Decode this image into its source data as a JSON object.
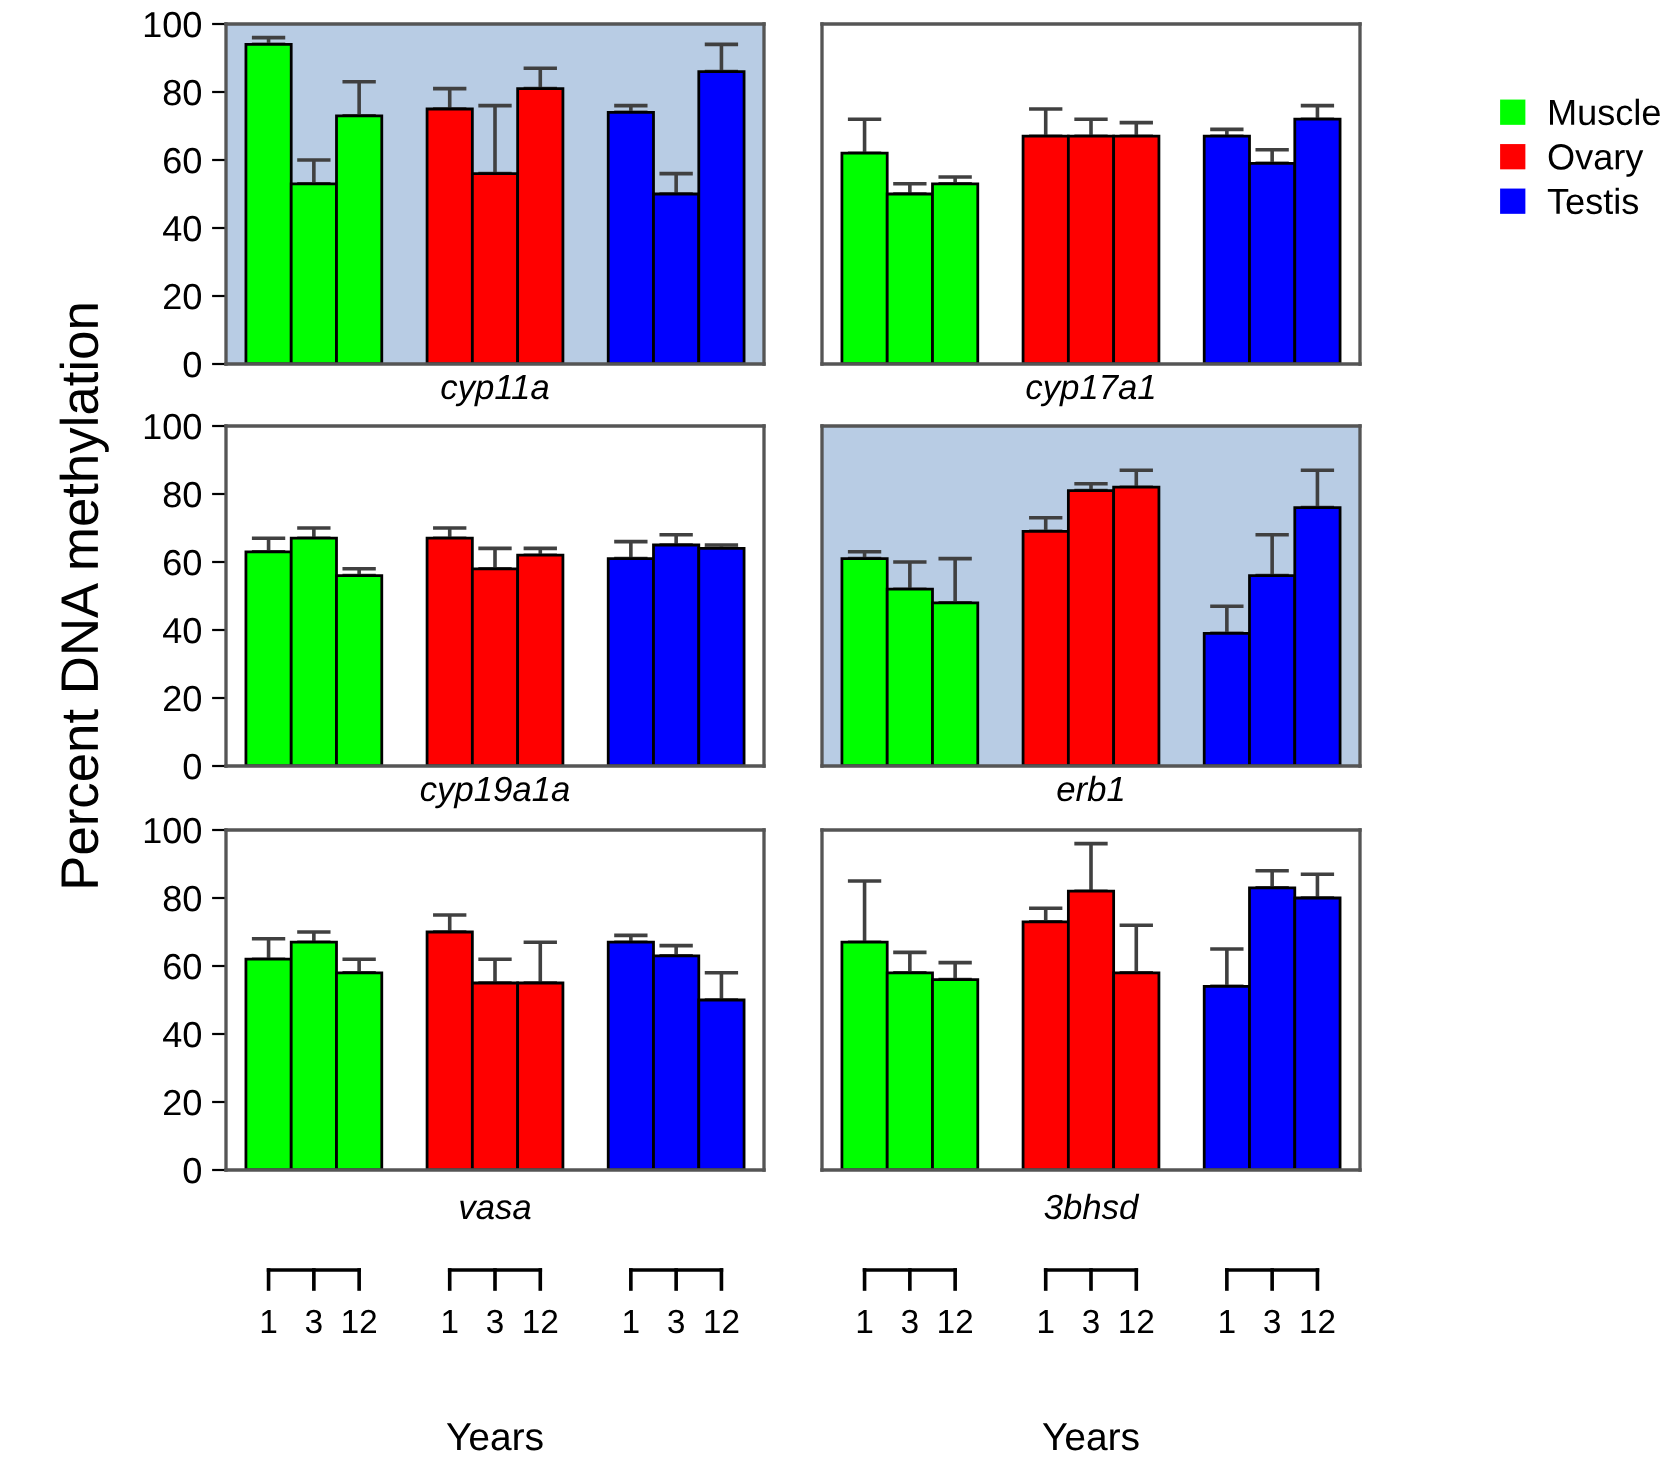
{
  "chart_data": [
    {
      "type": "bar",
      "title": "cyp11a",
      "categories": [
        "1",
        "3",
        "12",
        null,
        "1",
        "3",
        "12",
        null,
        "1",
        "3",
        "12"
      ],
      "ylim": [
        0,
        100
      ],
      "yticks": [
        0,
        20,
        40,
        60,
        80,
        100
      ],
      "tick_labels": "y",
      "grid": false,
      "legend": false,
      "bands": [
        {
          "axis": "y",
          "from": 0,
          "to": 100,
          "color": "#b8cce4"
        }
      ],
      "series": [
        {
          "color": "#00ff00",
          "values": [
            94,
            53,
            73,
            null,
            null,
            null,
            null,
            null,
            null,
            null,
            null
          ],
          "errors": [
            [
              94,
              96
            ],
            [
              53,
              60
            ],
            [
              73,
              83
            ],
            null,
            null,
            null,
            null,
            null,
            null,
            null,
            null
          ]
        },
        {
          "color": "#ff0000",
          "values": [
            null,
            null,
            null,
            null,
            75,
            56,
            81,
            null,
            null,
            null,
            null
          ],
          "errors": [
            null,
            null,
            null,
            null,
            [
              75,
              81
            ],
            [
              56,
              76
            ],
            [
              81,
              87
            ],
            null,
            null,
            null,
            null
          ]
        },
        {
          "color": "#0000ff",
          "values": [
            null,
            null,
            null,
            null,
            null,
            null,
            null,
            null,
            74,
            50,
            86
          ],
          "errors": [
            null,
            null,
            null,
            null,
            null,
            null,
            null,
            null,
            [
              74,
              76
            ],
            [
              50,
              56
            ],
            [
              86,
              94
            ]
          ]
        }
      ]
    },
    {
      "type": "bar",
      "title": "cyp17a1",
      "categories": [
        "1",
        "3",
        "12",
        null,
        "1",
        "3",
        "12",
        null,
        "1",
        "3",
        "12"
      ],
      "ylim": [
        0,
        100
      ],
      "yticks": [
        0,
        20,
        40,
        60,
        80,
        100
      ],
      "tick_labels": false,
      "grid": false,
      "legend": "right",
      "series": [
        {
          "name": "Muscle",
          "color": "#00ff00",
          "values": [
            62,
            50,
            53,
            null,
            null,
            null,
            null,
            null,
            null,
            null,
            null
          ],
          "errors": [
            [
              62,
              72
            ],
            [
              50,
              53
            ],
            [
              53,
              55
            ],
            null,
            null,
            null,
            null,
            null,
            null,
            null,
            null
          ]
        },
        {
          "name": "Ovary",
          "color": "#ff0000",
          "values": [
            null,
            null,
            null,
            null,
            67,
            67,
            67,
            null,
            null,
            null,
            null
          ],
          "errors": [
            null,
            null,
            null,
            null,
            [
              67,
              75
            ],
            [
              67,
              72
            ],
            [
              67,
              71
            ],
            null,
            null,
            null,
            null
          ]
        },
        {
          "name": "Testis",
          "color": "#0000ff",
          "values": [
            null,
            null,
            null,
            null,
            null,
            null,
            null,
            null,
            67,
            59,
            72
          ],
          "errors": [
            null,
            null,
            null,
            null,
            null,
            null,
            null,
            null,
            [
              67,
              69
            ],
            [
              59,
              63
            ],
            [
              72,
              76
            ]
          ]
        }
      ]
    },
    {
      "type": "bar",
      "title": "cyp19a1a",
      "ylabel": "Percent DNA methylation",
      "categories": [
        "1",
        "3",
        "12",
        null,
        "1",
        "3",
        "12",
        null,
        "1",
        "3",
        "12"
      ],
      "ylim": [
        0,
        100
      ],
      "yticks": [
        0,
        20,
        40,
        60,
        80,
        100
      ],
      "tick_labels": "y",
      "grid": false,
      "legend": false,
      "series": [
        {
          "color": "#00ff00",
          "values": [
            63,
            67,
            56,
            null,
            null,
            null,
            null,
            null,
            null,
            null,
            null
          ],
          "errors": [
            [
              63,
              67
            ],
            [
              67,
              70
            ],
            [
              56,
              58
            ],
            null,
            null,
            null,
            null,
            null,
            null,
            null,
            null
          ]
        },
        {
          "color": "#ff0000",
          "values": [
            null,
            null,
            null,
            null,
            67,
            58,
            62,
            null,
            null,
            null,
            null
          ],
          "errors": [
            null,
            null,
            null,
            null,
            [
              67,
              70
            ],
            [
              58,
              64
            ],
            [
              62,
              64
            ],
            null,
            null,
            null,
            null
          ]
        },
        {
          "color": "#0000ff",
          "values": [
            null,
            null,
            null,
            null,
            null,
            null,
            null,
            null,
            61,
            65,
            64
          ],
          "errors": [
            null,
            null,
            null,
            null,
            null,
            null,
            null,
            null,
            [
              61,
              66
            ],
            [
              65,
              68
            ],
            [
              64,
              65
            ]
          ]
        }
      ]
    },
    {
      "type": "bar",
      "title": "erb1",
      "categories": [
        "1",
        "3",
        "12",
        null,
        "1",
        "3",
        "12",
        null,
        "1",
        "3",
        "12"
      ],
      "ylim": [
        0,
        100
      ],
      "yticks": [
        0,
        20,
        40,
        60,
        80,
        100
      ],
      "tick_labels": false,
      "grid": false,
      "legend": false,
      "bands": [
        {
          "axis": "y",
          "from": 0,
          "to": 100,
          "color": "#b8cce4"
        }
      ],
      "series": [
        {
          "color": "#00ff00",
          "values": [
            61,
            52,
            48,
            null,
            null,
            null,
            null,
            null,
            null,
            null,
            null
          ],
          "errors": [
            [
              61,
              63
            ],
            [
              52,
              60
            ],
            [
              48,
              61
            ],
            null,
            null,
            null,
            null,
            null,
            null,
            null,
            null
          ]
        },
        {
          "color": "#ff0000",
          "values": [
            null,
            null,
            null,
            null,
            69,
            81,
            82,
            null,
            null,
            null,
            null
          ],
          "errors": [
            null,
            null,
            null,
            null,
            [
              69,
              73
            ],
            [
              81,
              83
            ],
            [
              82,
              87
            ],
            null,
            null,
            null,
            null
          ]
        },
        {
          "color": "#0000ff",
          "values": [
            null,
            null,
            null,
            null,
            null,
            null,
            null,
            null,
            39,
            56,
            76
          ],
          "errors": [
            null,
            null,
            null,
            null,
            null,
            null,
            null,
            null,
            [
              39,
              47
            ],
            [
              56,
              68
            ],
            [
              76,
              87
            ]
          ]
        }
      ]
    },
    {
      "type": "bar",
      "title": "vasa",
      "xlabel": "Years",
      "categories": [
        "1",
        "3",
        "12",
        null,
        "1",
        "3",
        "12",
        null,
        "1",
        "3",
        "12"
      ],
      "ylim": [
        0,
        100
      ],
      "yticks": [
        0,
        20,
        40,
        60,
        80,
        100
      ],
      "grid": false,
      "legend": false,
      "series": [
        {
          "color": "#00ff00",
          "values": [
            62,
            67,
            58,
            null,
            null,
            null,
            null,
            null,
            null,
            null,
            null
          ],
          "errors": [
            [
              62,
              68
            ],
            [
              67,
              70
            ],
            [
              58,
              62
            ],
            null,
            null,
            null,
            null,
            null,
            null,
            null,
            null
          ]
        },
        {
          "color": "#ff0000",
          "values": [
            null,
            null,
            null,
            null,
            70,
            55,
            55,
            null,
            null,
            null,
            null
          ],
          "errors": [
            null,
            null,
            null,
            null,
            [
              70,
              75
            ],
            [
              55,
              62
            ],
            [
              55,
              67
            ],
            null,
            null,
            null,
            null
          ]
        },
        {
          "color": "#0000ff",
          "values": [
            null,
            null,
            null,
            null,
            null,
            null,
            null,
            null,
            67,
            63,
            50
          ],
          "errors": [
            null,
            null,
            null,
            null,
            null,
            null,
            null,
            null,
            [
              67,
              69
            ],
            [
              63,
              66
            ],
            [
              50,
              58
            ]
          ]
        }
      ]
    },
    {
      "type": "bar",
      "title": "3bhsd",
      "xlabel": "Years",
      "categories": [
        "1",
        "3",
        "12",
        null,
        "1",
        "3",
        "12",
        null,
        "1",
        "3",
        "12"
      ],
      "ylim": [
        0,
        100
      ],
      "yticks": [
        0,
        20,
        40,
        60,
        80,
        100
      ],
      "tick_labels": "x",
      "grid": false,
      "legend": false,
      "series": [
        {
          "color": "#00ff00",
          "values": [
            67,
            58,
            56,
            null,
            null,
            null,
            null,
            null,
            null,
            null,
            null
          ],
          "errors": [
            [
              67,
              85
            ],
            [
              58,
              64
            ],
            [
              56,
              61
            ],
            null,
            null,
            null,
            null,
            null,
            null,
            null,
            null
          ]
        },
        {
          "color": "#ff0000",
          "values": [
            null,
            null,
            null,
            null,
            73,
            82,
            58,
            null,
            null,
            null,
            null
          ],
          "errors": [
            null,
            null,
            null,
            null,
            [
              73,
              77
            ],
            [
              82,
              96
            ],
            [
              58,
              72
            ],
            null,
            null,
            null,
            null
          ]
        },
        {
          "color": "#0000ff",
          "values": [
            null,
            null,
            null,
            null,
            null,
            null,
            null,
            null,
            54,
            83,
            80
          ],
          "errors": [
            null,
            null,
            null,
            null,
            null,
            null,
            null,
            null,
            [
              54,
              65
            ],
            [
              83,
              88
            ],
            [
              80,
              87
            ]
          ]
        }
      ]
    }
  ]
}
